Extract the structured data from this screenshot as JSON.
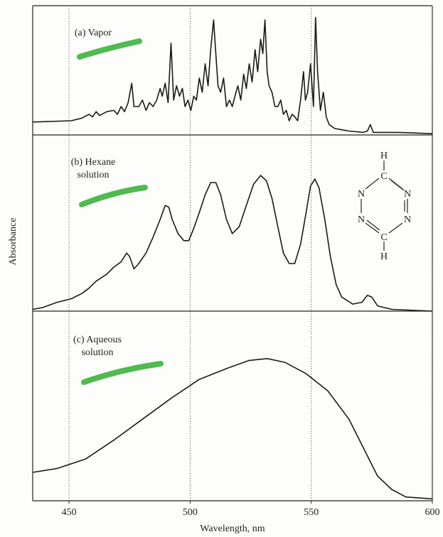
{
  "chart_data": [
    {
      "type": "line",
      "title": "(a) Vapor",
      "color": "#1a1a1a",
      "xlim": [
        435,
        600
      ],
      "ylim": [
        0,
        1
      ],
      "x": [
        435,
        450.9,
        455.3,
        458.2,
        459.7,
        461.2,
        462.6,
        465.6,
        468.5,
        470,
        471.5,
        472.9,
        474.4,
        475.9,
        476.8,
        478.8,
        480.3,
        481.8,
        483.2,
        484.7,
        486.2,
        487.6,
        488.5,
        489.7,
        490.9,
        492.1,
        493.2,
        494.4,
        495.6,
        496.8,
        497.9,
        499.1,
        500.3,
        501.5,
        502.6,
        503.8,
        505,
        506.2,
        507.4,
        508.5,
        509.7,
        510.6,
        511.5,
        512.6,
        513.8,
        515,
        516.2,
        517.4,
        518.5,
        519.7,
        520.9,
        522.1,
        523.2,
        524.4,
        525.6,
        526.8,
        527.9,
        529.1,
        530,
        530.9,
        531.8,
        532.6,
        533.8,
        535,
        536.2,
        537.4,
        538.5,
        539.7,
        540.9,
        542.1,
        543.2,
        544.4,
        545.6,
        546.8,
        547.6,
        548.5,
        549.7,
        550.9,
        551.8,
        552.6,
        553.8,
        555,
        556.2,
        557.4,
        559.7,
        562.6,
        565.6,
        571.5,
        573.2,
        574.4,
        575.6,
        586.2,
        600
      ],
      "values": [
        0.1,
        0.11,
        0.13,
        0.16,
        0.14,
        0.18,
        0.15,
        0.18,
        0.19,
        0.16,
        0.22,
        0.18,
        0.25,
        0.4,
        0.22,
        0.22,
        0.27,
        0.19,
        0.25,
        0.22,
        0.27,
        0.36,
        0.3,
        0.4,
        0.25,
        0.71,
        0.27,
        0.38,
        0.3,
        0.36,
        0.22,
        0.27,
        0.19,
        0.3,
        0.27,
        0.44,
        0.33,
        0.55,
        0.38,
        0.66,
        0.89,
        0.63,
        0.38,
        0.33,
        0.44,
        0.22,
        0.27,
        0.22,
        0.3,
        0.38,
        0.27,
        0.47,
        0.36,
        0.55,
        0.41,
        0.66,
        0.49,
        0.74,
        0.63,
        0.89,
        0.49,
        0.38,
        0.33,
        0.22,
        0.22,
        0.27,
        0.16,
        0.19,
        0.11,
        0.16,
        0.14,
        0.11,
        0.27,
        0.49,
        0.27,
        0.33,
        0.55,
        0.22,
        0.91,
        0.49,
        0.19,
        0.33,
        0.14,
        0.08,
        0.05,
        0.04,
        0.03,
        0.02,
        0.03,
        0.08,
        0.02,
        0.02,
        0.01
      ]
    },
    {
      "type": "line",
      "title": "(b) Hexane solution",
      "y_label": "Absorbance",
      "color": "#1a1a1a",
      "xlim": [
        435,
        600
      ],
      "ylim": [
        0,
        1
      ],
      "structure_labels": [
        "H",
        "C",
        "N",
        "N",
        "N",
        "N",
        "C",
        "H"
      ],
      "x": [
        435,
        439.1,
        445,
        450.9,
        455.3,
        458.2,
        461.2,
        465.6,
        468.5,
        471.5,
        473.8,
        475,
        476.8,
        478.8,
        481.8,
        484.7,
        487.6,
        489.7,
        491.2,
        492.6,
        495,
        497.4,
        499.4,
        501.5,
        503.8,
        506.2,
        508.5,
        510.6,
        512.6,
        515,
        517.4,
        520.3,
        523.2,
        526.2,
        529.1,
        531.5,
        533.8,
        536.2,
        538.5,
        540.9,
        543.2,
        545.6,
        547.9,
        549.7,
        551.5,
        553.2,
        555.6,
        557.9,
        560.3,
        562.6,
        567.1,
        570.9,
        573.2,
        575,
        577.4,
        583.2,
        600
      ],
      "values": [
        0.01,
        0.02,
        0.05,
        0.07,
        0.1,
        0.13,
        0.17,
        0.21,
        0.25,
        0.28,
        0.33,
        0.31,
        0.24,
        0.27,
        0.33,
        0.42,
        0.52,
        0.6,
        0.59,
        0.52,
        0.44,
        0.4,
        0.4,
        0.47,
        0.56,
        0.66,
        0.73,
        0.73,
        0.66,
        0.52,
        0.44,
        0.48,
        0.6,
        0.72,
        0.77,
        0.74,
        0.64,
        0.48,
        0.33,
        0.27,
        0.27,
        0.38,
        0.56,
        0.71,
        0.75,
        0.7,
        0.52,
        0.31,
        0.15,
        0.08,
        0.04,
        0.05,
        0.09,
        0.08,
        0.03,
        0.01,
        0.0
      ]
    },
    {
      "type": "line",
      "title": "(c) Aqueous solution",
      "x_label": "Wavelength, nm",
      "color": "#1a1a1a",
      "xlim": [
        435,
        600
      ],
      "ylim": [
        0,
        1
      ],
      "xticks": [
        450,
        500,
        550,
        600
      ],
      "x": [
        435,
        445,
        456.8,
        468.5,
        480.3,
        492.1,
        503.8,
        515.6,
        524.4,
        531.8,
        539.1,
        547.9,
        556.8,
        565.6,
        571.5,
        577.4,
        583.2,
        589.1,
        600
      ],
      "values": [
        0.15,
        0.17,
        0.22,
        0.32,
        0.43,
        0.54,
        0.64,
        0.7,
        0.74,
        0.75,
        0.73,
        0.67,
        0.58,
        0.43,
        0.28,
        0.13,
        0.06,
        0.02,
        0.01
      ]
    }
  ]
}
